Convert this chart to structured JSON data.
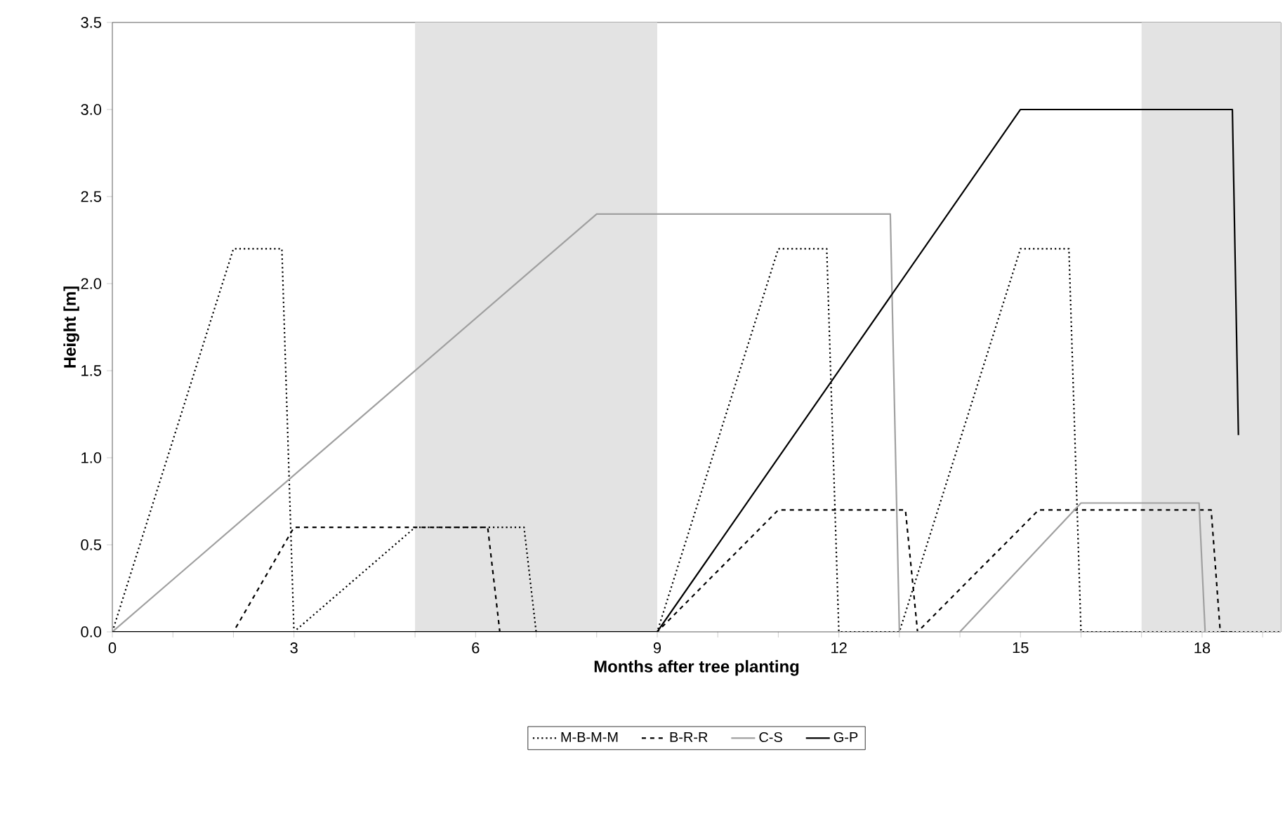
{
  "chart_data": {
    "type": "line",
    "xlabel": "Months after tree planting",
    "ylabel": "Height [m]",
    "xlim": [
      0,
      19.3
    ],
    "ylim": [
      0,
      3.5
    ],
    "xticks": [
      0,
      {
        "value": 1,
        "label": null
      },
      {
        "value": 2,
        "label": null
      },
      3,
      {
        "value": 4,
        "label": null
      },
      {
        "value": 5,
        "label": null
      },
      6,
      {
        "value": 7,
        "label": null
      },
      {
        "value": 8,
        "label": null
      },
      9,
      {
        "value": 10,
        "label": null
      },
      {
        "value": 11,
        "label": null
      },
      12,
      {
        "value": 13,
        "label": null
      },
      {
        "value": 14,
        "label": null
      },
      15,
      {
        "value": 16,
        "label": null
      },
      {
        "value": 17,
        "label": null
      },
      18,
      {
        "value": 19,
        "label": null
      }
    ],
    "yticks": [
      {
        "value": 0,
        "label": "0.0"
      },
      {
        "value": 0.5,
        "label": "0.5"
      },
      {
        "value": 1,
        "label": "1.0"
      },
      {
        "value": 1.5,
        "label": "1.5"
      },
      {
        "value": 2,
        "label": "2.0"
      },
      {
        "value": 2.5,
        "label": "2.5"
      },
      {
        "value": 3,
        "label": "3.0"
      },
      {
        "value": 3.5,
        "label": "3.5"
      }
    ],
    "grid": false,
    "legend": "bottom",
    "marker": "none",
    "bands": [
      {
        "axis": "x",
        "from": 5,
        "to": 9,
        "color": "#e3e3e3"
      },
      {
        "axis": "x",
        "from": 17,
        "to": 19.3,
        "color": "#e3e3e3"
      }
    ],
    "series": [
      {
        "name": "M-B-M-M",
        "color": "#000000",
        "line_style": "dotted",
        "x": [
          0,
          2,
          2.8,
          3,
          5,
          6.8,
          7,
          9,
          11,
          11.8,
          12,
          13,
          15,
          15.8,
          16,
          19.3
        ],
        "values": [
          0,
          2.2,
          2.2,
          0,
          0.6,
          0.6,
          0,
          0,
          2.2,
          2.2,
          0,
          0,
          2.2,
          2.2,
          0,
          0
        ]
      },
      {
        "name": "B-R-R",
        "color": "#000000",
        "line_style": "dashed",
        "x": [
          0,
          2,
          3,
          6.2,
          6.4,
          9,
          11,
          13.1,
          13.3,
          15.3,
          18.15,
          18.3,
          18.5
        ],
        "values": [
          0,
          0,
          0.6,
          0.6,
          0,
          0,
          0.7,
          0.7,
          0,
          0.7,
          0.7,
          0,
          0
        ]
      },
      {
        "name": "C-S",
        "color": "#a0a0a0",
        "line_style": "solid",
        "x": [
          0,
          8,
          12.85,
          13,
          14,
          16,
          17.95,
          18.05
        ],
        "values": [
          0,
          2.4,
          2.4,
          0,
          0,
          0.74,
          0.74,
          0
        ]
      },
      {
        "name": "G-P",
        "color": "#000000",
        "line_style": "solid",
        "x": [
          0,
          9,
          15,
          18.5,
          18.6
        ],
        "values": [
          0,
          0,
          3.0,
          3.0,
          1.13
        ]
      }
    ]
  }
}
